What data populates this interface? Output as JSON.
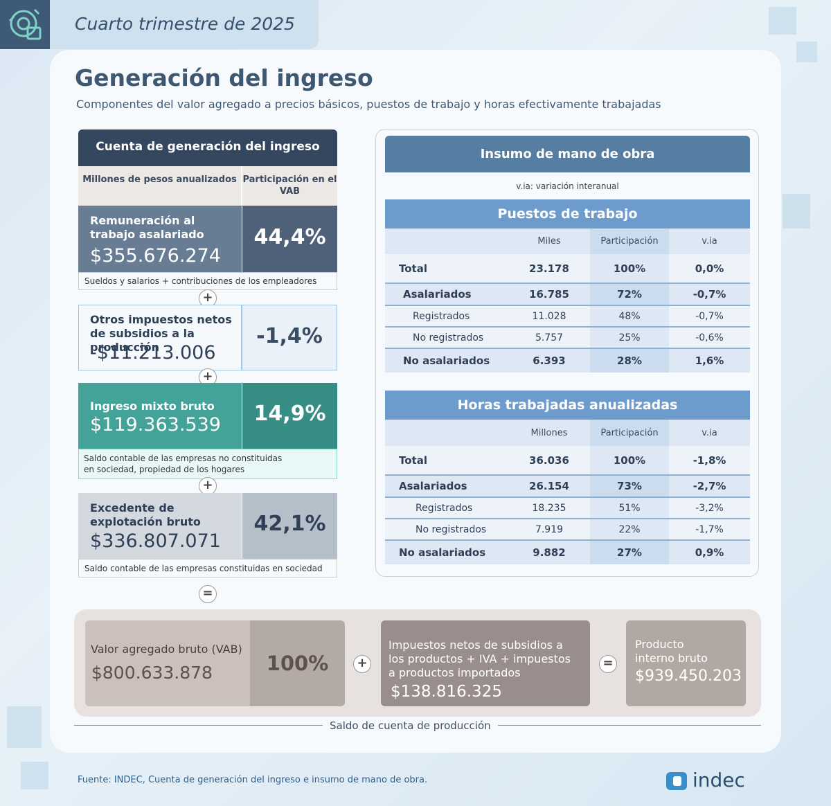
{
  "header": {
    "period": "Cuarto trimestre de 2025"
  },
  "title": "Generación del ingreso",
  "subtitle": "Componentes del valor agregado a precios básicos, puestos de trabajo y horas efectivamente trabajadas",
  "left": {
    "heading": "Cuenta de generación del ingreso",
    "col_a": "Millones de pesos anualizados",
    "col_b": "Participación en el VAB",
    "blocks": [
      {
        "name": "Remuneración al trabajo asalariado",
        "value": "$355.676.274",
        "pct": "44,4%",
        "note": "Sueldos y salarios + contribuciones de los empleadores"
      },
      {
        "name": "Otros impuestos netos de subsidios a la producción",
        "value": "-$11.213.006",
        "pct": "-1,4%"
      },
      {
        "name": "Ingreso mixto bruto",
        "value": "$119.363.539",
        "pct": "14,9%",
        "note1": "Saldo contable de las empresas no constituidas",
        "note2": "en sociedad, propiedad de los hogares"
      },
      {
        "name": "Excedente de explotación bruto",
        "value": "$336.807.071",
        "pct": "42,1%",
        "note": "Saldo contable de las empresas constituidas en sociedad"
      }
    ],
    "plus": "+",
    "equals": "="
  },
  "right": {
    "heading": "Insumo de mano de obra",
    "via_note": "v.ia: variación interanual",
    "puestos": {
      "title": "Puestos de trabajo",
      "cols": [
        "Miles",
        "Participación",
        "v.ia"
      ],
      "rows": [
        {
          "label": "Total",
          "a": "23.178",
          "b": "100%",
          "c": "0,0%"
        },
        {
          "label": "Asalariados",
          "a": "16.785",
          "b": "72%",
          "c": "-0,7%"
        },
        {
          "label": "Registrados",
          "a": "11.028",
          "b": "48%",
          "c": "-0,7%"
        },
        {
          "label": "No registrados",
          "a": "5.757",
          "b": "25%",
          "c": "-0,6%"
        },
        {
          "label": "No asalariados",
          "a": "6.393",
          "b": "28%",
          "c": "1,6%"
        }
      ]
    },
    "horas": {
      "title": "Horas trabajadas anualizadas",
      "cols": [
        "Millones",
        "Participación",
        "v.ia"
      ],
      "rows": [
        {
          "label": "Total",
          "a": "36.036",
          "b": "100%",
          "c": "-1,8%"
        },
        {
          "label": "Asalariados",
          "a": "26.154",
          "b": "73%",
          "c": "-2,7%"
        },
        {
          "label": "Registrados",
          "a": "18.235",
          "b": "51%",
          "c": "-3,2%"
        },
        {
          "label": "No registrados",
          "a": "7.919",
          "b": "22%",
          "c": "-1,7%"
        },
        {
          "label": "No asalariados",
          "a": "9.882",
          "b": "27%",
          "c": "0,9%"
        }
      ]
    }
  },
  "bottom": {
    "vab_label": "Valor agregado bruto (VAB)",
    "vab_value": "$800.633.878",
    "vab_pct": "100%",
    "imp_line1": "Impuestos netos de subsidios a",
    "imp_line2": "los productos + IVA + impuestos",
    "imp_line3": "a productos importados",
    "imp_value": "$138.816.325",
    "pib_line1": "Producto",
    "pib_line2": "interno bruto",
    "pib_value": "$939.450.203",
    "saldo": "Saldo de cuenta de producción"
  },
  "footer": {
    "source": "Fuente: INDEC, Cuenta de generación del ingreso e insumo de mano de obra.",
    "brand": "indec"
  },
  "colors": {
    "dark": "#34475e",
    "teal": "#43a398",
    "blue": "#6d9ccc"
  },
  "icons": [
    "gear-refresh-icon",
    "indec-logo-icon"
  ]
}
